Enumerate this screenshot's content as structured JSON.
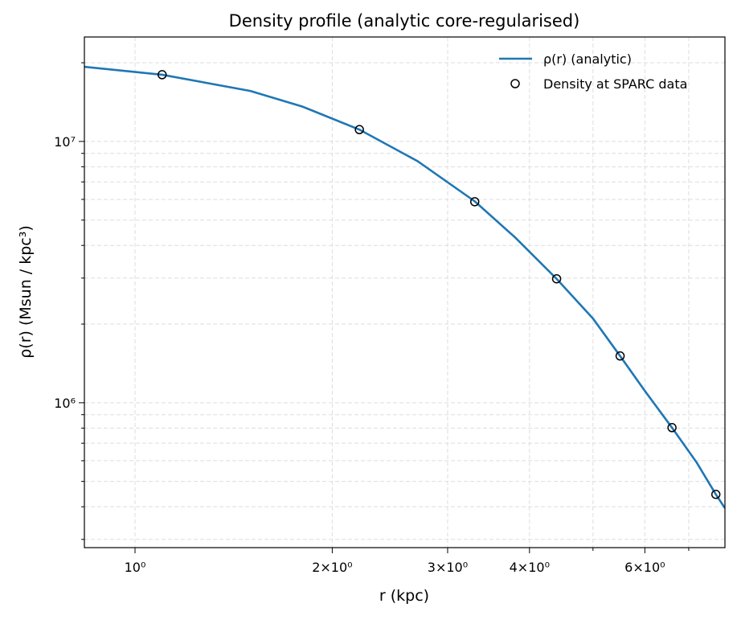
{
  "chart_data": {
    "type": "line",
    "title": "Density profile (analytic core-regularised)",
    "xlabel": "r (kpc)",
    "ylabel": "ρ(r) (Msun / kpc³)",
    "xscale": "log",
    "yscale": "log",
    "grid": true,
    "legend": "upper right",
    "xlim": [
      0.837,
      7.95
    ],
    "ylim": [
      279000,
      25100000
    ],
    "xticks": [
      {
        "value": 1,
        "label": "10⁰"
      },
      {
        "value": 2,
        "label": "2×10⁰"
      },
      {
        "value": 3,
        "label": "3×10⁰"
      },
      {
        "value": 4,
        "label": "4×10⁰"
      },
      {
        "value": 6,
        "label": "6×10⁰"
      }
    ],
    "xminorticks": [
      5,
      7
    ],
    "yticks": [
      {
        "value": 1000000,
        "label": "10⁶"
      },
      {
        "value": 10000000,
        "label": "10⁷"
      }
    ],
    "yminorticks": [
      300000,
      400000,
      500000,
      600000,
      700000,
      800000,
      900000,
      2000000,
      3000000,
      4000000,
      5000000,
      6000000,
      7000000,
      8000000,
      9000000,
      20000000
    ],
    "series": [
      {
        "name": "ρ(r) (analytic)",
        "kind": "line",
        "color": "#1f77b4",
        "x": [
          0.837,
          1.1,
          1.5,
          1.8,
          2.2,
          2.7,
          3.3,
          3.8,
          4.4,
          5.0,
          5.5,
          6.0,
          6.6,
          7.2,
          7.7,
          7.95
        ],
        "values": [
          19300000,
          18000000,
          15600000,
          13600000,
          11100000,
          8400000,
          5900000,
          4300000,
          2980000,
          2100000,
          1510000,
          1110000,
          803000,
          590000,
          446000,
          395000
        ]
      },
      {
        "name": "Density at SPARC data",
        "kind": "scatter",
        "color": "#000000",
        "x": [
          1.1,
          2.2,
          3.3,
          4.4,
          5.5,
          6.6,
          7.7
        ],
        "values": [
          18000000,
          11100000,
          5880000,
          2980000,
          1510000,
          803000,
          446000
        ]
      }
    ]
  }
}
